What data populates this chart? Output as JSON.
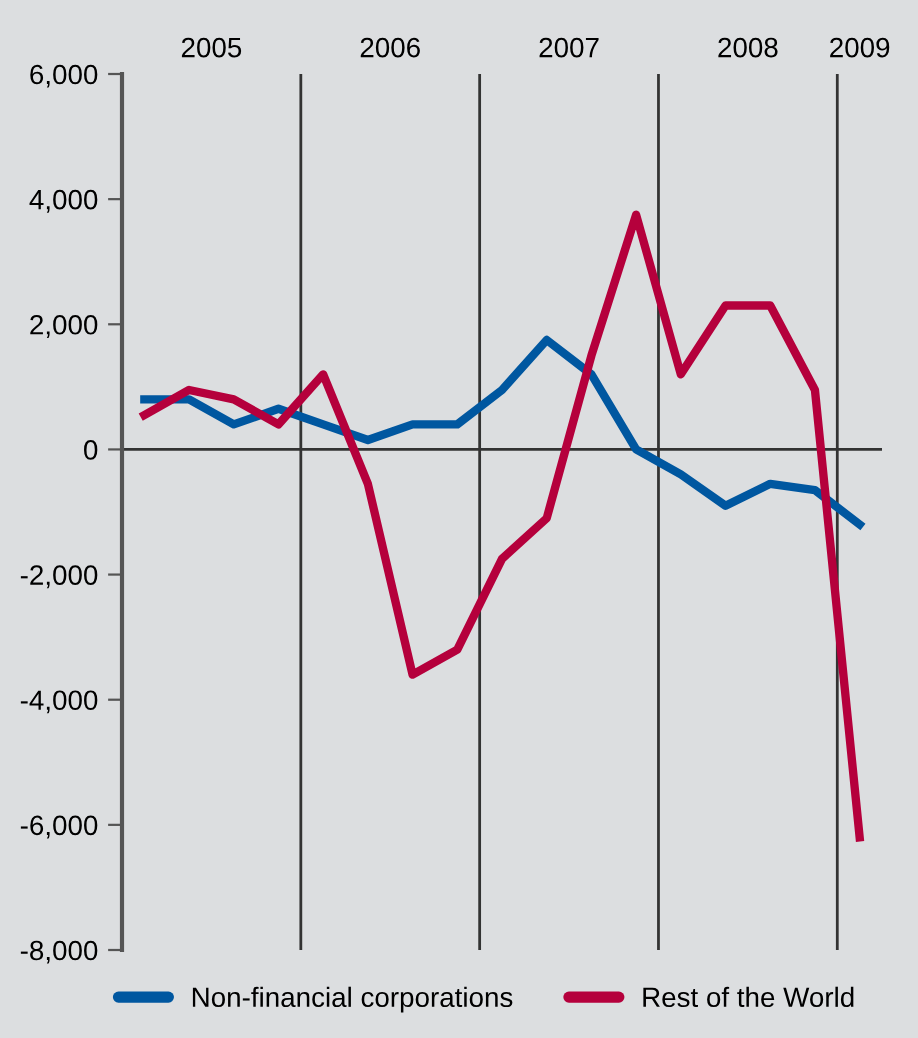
{
  "chart_data": {
    "type": "line",
    "x": [
      2005.125,
      2005.375,
      2005.625,
      2005.875,
      2006.125,
      2006.375,
      2006.625,
      2006.875,
      2007.125,
      2007.375,
      2007.625,
      2007.875,
      2008.125,
      2008.375,
      2008.625,
      2008.875,
      2009.125
    ],
    "series": [
      {
        "name": "Non-financial corporations",
        "color": "#0057a0",
        "values": [
          800,
          800,
          400,
          650,
          400,
          150,
          400,
          400,
          950,
          1750,
          1200,
          0,
          -400,
          -900,
          -550,
          -650,
          -1200
        ]
      },
      {
        "name": "Rest of the World",
        "color": "#b5003c",
        "values": [
          550,
          950,
          800,
          400,
          1200,
          -550,
          -3600,
          -3200,
          -1750,
          -1100,
          1500,
          3750,
          1200,
          2300,
          2300,
          950,
          -6200
        ]
      }
    ],
    "xlim": [
      2005,
      2009.25
    ],
    "xticks": [
      {
        "value": 2005.5,
        "label": "2005"
      },
      {
        "value": 2006.5,
        "label": "2006"
      },
      {
        "value": 2007.5,
        "label": "2007"
      },
      {
        "value": 2008.5,
        "label": "2008"
      },
      {
        "value": 2009.125,
        "label": "2009"
      }
    ],
    "ylim": [
      -8000,
      6000
    ],
    "yticks": [
      {
        "value": -8000,
        "label": "-8,000"
      },
      {
        "value": -6000,
        "label": "-6,000"
      },
      {
        "value": -4000,
        "label": "-4,000"
      },
      {
        "value": -2000,
        "label": "-2,000"
      },
      {
        "value": 0,
        "label": "0"
      },
      {
        "value": 2000,
        "label": "2,000"
      },
      {
        "value": 4000,
        "label": "4,000"
      },
      {
        "value": 6000,
        "label": "6,000"
      }
    ],
    "ref_lines": [
      {
        "axis": "y",
        "value": 0,
        "color": "#333333"
      },
      {
        "axis": "x",
        "value": 2006,
        "color": "#333333"
      },
      {
        "axis": "x",
        "value": 2007,
        "color": "#333333"
      },
      {
        "axis": "x",
        "value": 2008,
        "color": "#333333"
      },
      {
        "axis": "x",
        "value": 2009,
        "color": "#333333"
      }
    ],
    "grid": false,
    "legend": "bottom",
    "marker": "none",
    "line_style": "solid"
  }
}
